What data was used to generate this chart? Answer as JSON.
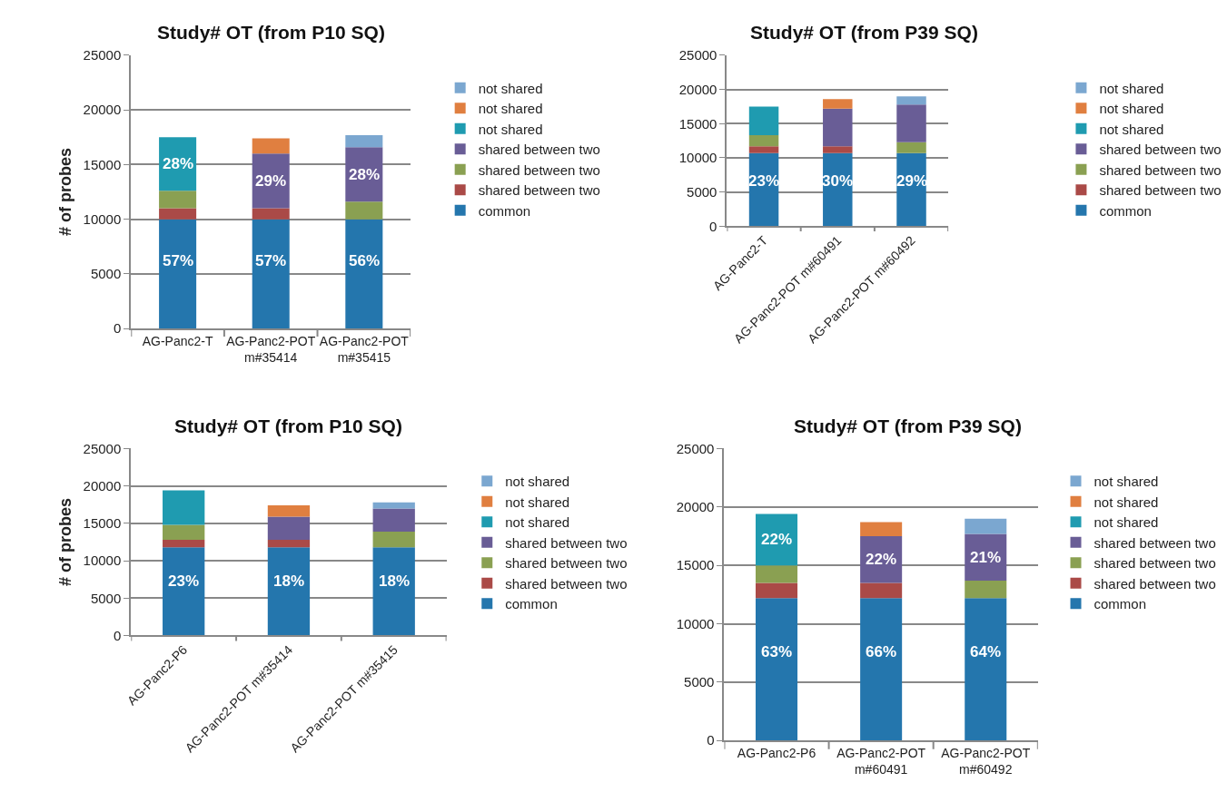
{
  "chart_data": [
    {
      "type": "bar",
      "stacked": true,
      "title": "Study# OT (from P10 SQ)",
      "ylabel": "# of probes",
      "categories": [
        "AG-Panc2-T",
        "AG-Panc2-POT m#35414",
        "AG-Panc2-POT m#35415"
      ],
      "ylim": [
        0,
        25000
      ],
      "yticks": [
        0,
        5000,
        10000,
        15000,
        20000,
        25000
      ],
      "grid": "y",
      "legend": "right",
      "series": [
        {
          "name": "common",
          "color": "#2476ad",
          "values": [
            10000,
            10000,
            10000
          ]
        },
        {
          "name": "shared between two",
          "color": "#aa4a47",
          "values": [
            1000,
            1000,
            null
          ]
        },
        {
          "name": "shared between two",
          "color": "#8aa052",
          "values": [
            1600,
            null,
            1600
          ]
        },
        {
          "name": "shared between two",
          "color": "#695d96",
          "values": [
            null,
            5000,
            5000
          ]
        },
        {
          "name": "not shared",
          "color": "#1f9bb0",
          "values": [
            4900,
            null,
            null
          ]
        },
        {
          "name": "not shared",
          "color": "#e07f40",
          "values": [
            null,
            1400,
            null
          ]
        },
        {
          "name": "not shared",
          "color": "#7ba7d0",
          "values": [
            null,
            null,
            1100
          ]
        }
      ],
      "annotations": [
        "57%",
        "57%",
        "56%",
        "28%",
        "29%",
        "28%"
      ]
    },
    {
      "type": "bar",
      "stacked": true,
      "title": "Study# OT (from P39 SQ)",
      "categories": [
        "AG-Panc2-T",
        "AG-Panc2-POT m#60491",
        "AG-Panc2-POT m#60492"
      ],
      "ylim": [
        0,
        25000
      ],
      "yticks": [
        0,
        5000,
        10000,
        15000,
        20000,
        25000
      ],
      "grid": "y",
      "legend": "right",
      "series": [
        {
          "name": "common",
          "color": "#2476ad",
          "values": [
            10700,
            10700,
            10700
          ]
        },
        {
          "name": "shared between two",
          "color": "#aa4a47",
          "values": [
            1000,
            1000,
            null
          ]
        },
        {
          "name": "shared between two",
          "color": "#8aa052",
          "values": [
            1600,
            null,
            1600
          ]
        },
        {
          "name": "shared between two",
          "color": "#695d96",
          "values": [
            null,
            5500,
            5500
          ]
        },
        {
          "name": "not shared",
          "color": "#1f9bb0",
          "values": [
            4200,
            null,
            null
          ]
        },
        {
          "name": "not shared",
          "color": "#e07f40",
          "values": [
            null,
            1400,
            null
          ]
        },
        {
          "name": "not shared",
          "color": "#7ba7d0",
          "values": [
            null,
            null,
            1200
          ]
        }
      ],
      "annotations": [
        "23%",
        "30%",
        "29%"
      ]
    },
    {
      "type": "bar",
      "stacked": true,
      "title": "Study# OT (from P10 SQ)",
      "ylabel": "# of probes",
      "categories": [
        "AG-Panc2-P6",
        "AG-Panc2-POT m#35414",
        "AG-Panc2-POT m#35415"
      ],
      "ylim": [
        0,
        25000
      ],
      "yticks": [
        0,
        5000,
        10000,
        15000,
        20000,
        25000
      ],
      "grid": "y",
      "legend": "right",
      "series": [
        {
          "name": "common",
          "color": "#2476ad",
          "values": [
            11800,
            11800,
            11800
          ]
        },
        {
          "name": "shared between two",
          "color": "#aa4a47",
          "values": [
            1000,
            1000,
            null
          ]
        },
        {
          "name": "shared between two",
          "color": "#8aa052",
          "values": [
            2000,
            null,
            2100
          ]
        },
        {
          "name": "shared between two",
          "color": "#695d96",
          "values": [
            null,
            3100,
            3100
          ]
        },
        {
          "name": "not shared",
          "color": "#1f9bb0",
          "values": [
            4600,
            null,
            null
          ]
        },
        {
          "name": "not shared",
          "color": "#e07f40",
          "values": [
            null,
            1500,
            null
          ]
        },
        {
          "name": "not shared",
          "color": "#7ba7d0",
          "values": [
            null,
            null,
            800
          ]
        }
      ],
      "annotations": [
        "23%",
        "18%",
        "18%"
      ]
    },
    {
      "type": "bar",
      "stacked": true,
      "title": "Study# OT (from P39 SQ)",
      "categories": [
        "AG-Panc2-P6",
        "AG-Panc2-POT m#60491",
        "AG-Panc2-POT m#60492"
      ],
      "ylim": [
        0,
        25000
      ],
      "yticks": [
        0,
        5000,
        10000,
        15000,
        20000,
        25000
      ],
      "grid": "y",
      "legend": "right",
      "series": [
        {
          "name": "common",
          "color": "#2476ad",
          "values": [
            12200,
            12200,
            12200
          ]
        },
        {
          "name": "shared between two",
          "color": "#aa4a47",
          "values": [
            1300,
            1300,
            null
          ]
        },
        {
          "name": "shared between two",
          "color": "#8aa052",
          "values": [
            1500,
            null,
            1500
          ]
        },
        {
          "name": "shared between two",
          "color": "#695d96",
          "values": [
            null,
            4000,
            4000
          ]
        },
        {
          "name": "not shared",
          "color": "#1f9bb0",
          "values": [
            4400,
            null,
            null
          ]
        },
        {
          "name": "not shared",
          "color": "#e07f40",
          "values": [
            null,
            1200,
            null
          ]
        },
        {
          "name": "not shared",
          "color": "#7ba7d0",
          "values": [
            null,
            null,
            1300
          ]
        }
      ],
      "annotations": [
        "63%",
        "66%",
        "64%",
        "22%",
        "22%",
        "21%"
      ]
    }
  ]
}
